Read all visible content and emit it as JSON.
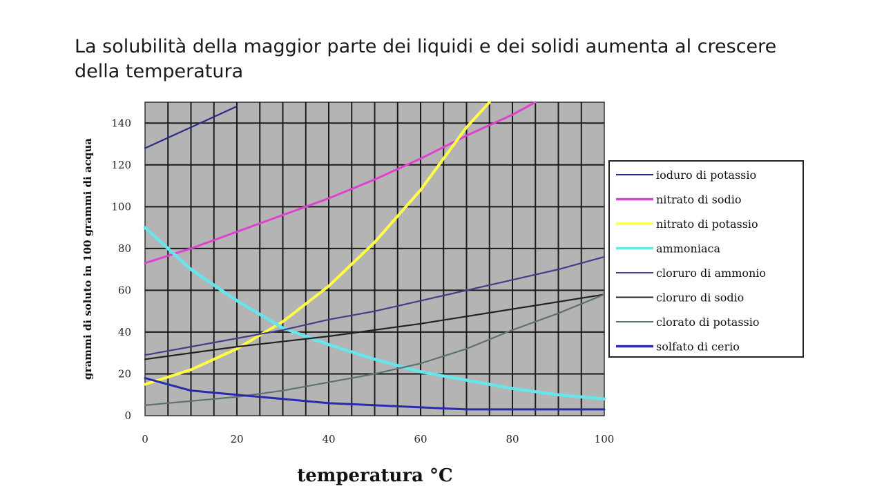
{
  "slide": {
    "title": "La solubilità della maggior parte dei liquidi e dei solidi aumenta al crescere della temperatura"
  },
  "chart_data": {
    "type": "line",
    "title": "",
    "xlabel": "temperatura °C",
    "ylabel": "grammi di soluto in 100 grammi di acqua",
    "xlim": [
      0,
      100
    ],
    "ylim": [
      0,
      150
    ],
    "x_ticks": [
      "0",
      "20",
      "40",
      "60",
      "80",
      "100"
    ],
    "y_ticks": [
      "0",
      "20",
      "40",
      "60",
      "80",
      "100",
      "120",
      "140"
    ],
    "grid": true,
    "legend_position": "right",
    "plot_background": "#b4b4b4",
    "series": [
      {
        "name": "ioduro di potassio",
        "color": "#2a2a8a",
        "x": [
          0,
          10,
          20
        ],
        "y": [
          128,
          138,
          148
        ]
      },
      {
        "name": "nitrato di sodio",
        "color": "#e040d0",
        "x": [
          0,
          10,
          20,
          30,
          40,
          50,
          60,
          70,
          80,
          85
        ],
        "y": [
          73,
          80,
          88,
          96,
          104,
          113,
          123,
          134,
          144,
          150
        ]
      },
      {
        "name": "nitrato di potassio",
        "color": "#ffff44",
        "x": [
          0,
          10,
          20,
          30,
          40,
          50,
          60,
          70,
          75
        ],
        "y": [
          15,
          22,
          32,
          45,
          62,
          83,
          108,
          138,
          150
        ]
      },
      {
        "name": "ammoniaca",
        "color": "#66e6ec",
        "x": [
          0,
          10,
          20,
          30,
          40,
          50,
          60,
          70,
          80,
          90,
          100
        ],
        "y": [
          90,
          70,
          55,
          42,
          34,
          27,
          21,
          17,
          13,
          10,
          8
        ]
      },
      {
        "name": "cloruro di ammonio",
        "color": "#4a3a8a",
        "x": [
          0,
          10,
          20,
          30,
          40,
          50,
          60,
          70,
          80,
          90,
          100
        ],
        "y": [
          29,
          33,
          37,
          41,
          46,
          50,
          55,
          60,
          65,
          70,
          76
        ]
      },
      {
        "name": "cloruro di sodio",
        "color": "#222222",
        "x": [
          0,
          20,
          40,
          60,
          80,
          100
        ],
        "y": [
          27,
          33,
          38,
          44,
          51,
          58
        ]
      },
      {
        "name": "clorato di potassio",
        "color": "#607070",
        "x": [
          0,
          10,
          20,
          30,
          40,
          50,
          60,
          70,
          80,
          90,
          100
        ],
        "y": [
          5,
          7,
          9,
          12,
          16,
          20,
          25,
          32,
          41,
          49,
          58
        ]
      },
      {
        "name": "solfato di cerio",
        "color": "#2a2ab0",
        "x": [
          0,
          10,
          20,
          30,
          40,
          50,
          60,
          70,
          80,
          90,
          100
        ],
        "y": [
          18,
          12,
          10,
          8,
          6,
          5,
          4,
          3,
          3,
          3,
          3
        ]
      }
    ]
  }
}
